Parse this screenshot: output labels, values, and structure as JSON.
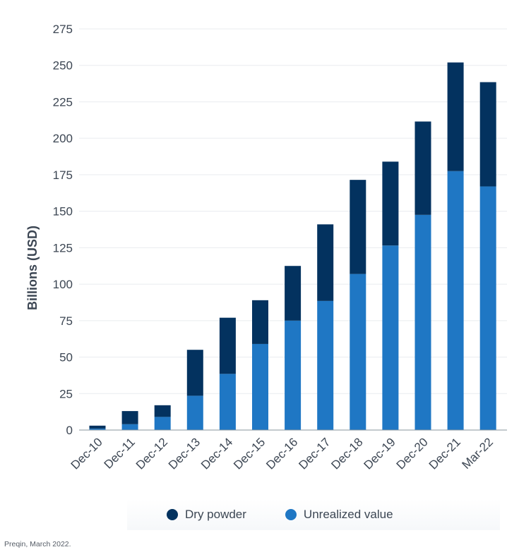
{
  "chart_data": {
    "type": "bar",
    "stacked": true,
    "categories": [
      "Dec-10",
      "Dec-11",
      "Dec-12",
      "Dec-13",
      "Dec-14",
      "Dec-15",
      "Dec-16",
      "Dec-17",
      "Dec-18",
      "Dec-19",
      "Dec-20",
      "Dec-21",
      "Mar-22"
    ],
    "series": [
      {
        "name": "Unrealized value",
        "color": "#1f77c4",
        "values": [
          1,
          4,
          9,
          23.5,
          38.5,
          59,
          75,
          88.5,
          107,
          126.5,
          147.5,
          177.5,
          167
        ]
      },
      {
        "name": "Dry powder",
        "color": "#03325f",
        "values": [
          2,
          9,
          8,
          31.5,
          38.5,
          30,
          37.5,
          52.5,
          64.5,
          57.5,
          64,
          74.5,
          71.5
        ]
      }
    ],
    "ylabel": "Billions (USD)",
    "yticks": [
      0,
      25,
      50,
      75,
      100,
      125,
      150,
      175,
      200,
      225,
      250,
      275
    ],
    "ylim": [
      0,
      275
    ],
    "grid": true,
    "legend_position": "bottom"
  },
  "source": "Preqin, March 2022."
}
